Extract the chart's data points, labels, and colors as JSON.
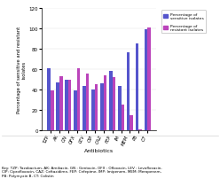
{
  "categories": [
    "TZP",
    "AK",
    "GN",
    "OFX",
    "LEV",
    "CIP",
    "CAZ",
    "FEP",
    "IM",
    "MEM",
    "PB",
    "CT"
  ],
  "sensitive": [
    61,
    47,
    50,
    39,
    44,
    40,
    46,
    58,
    44,
    77,
    85,
    99
  ],
  "resistant": [
    39,
    53,
    50,
    61,
    56,
    45,
    54,
    52,
    25,
    15,
    1,
    101
  ],
  "bar_color_sensitive": "#5555cc",
  "bar_color_resistant": "#bb44bb",
  "ylabel": "Percentage of sensitive and resistant\nisolates",
  "xlabel": "Antibiotics",
  "ylim": [
    0,
    120
  ],
  "yticks": [
    0,
    20,
    40,
    60,
    80,
    100,
    120
  ],
  "legend_sensitive": "Percentage of\nsensitive isolates",
  "legend_resistant": "Percentage of\nresistant isolates",
  "footnote": "Key: TZP: Tazobactum, AK: Amikacin, GN : Gentacin, OFX : Ofloxacin, LEV : Levofloxacin,\nCIP: Ciprofloxacin, CAZ: Ceftazidime, FEP: Cefepime, IMP: Imipenem, MEM: Meropenem,\nPB: Polymyxin B, CT: Colistin"
}
